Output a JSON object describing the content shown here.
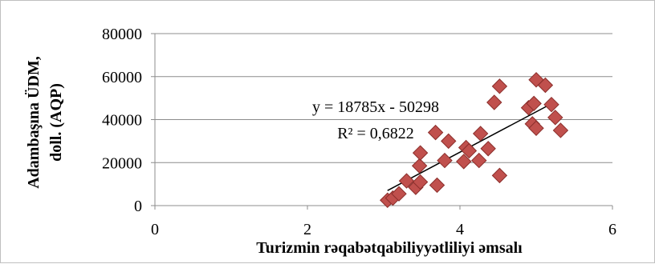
{
  "chart_data": {
    "type": "scatter",
    "xlabel": "Turizmin rəqabətqabiliyyətliliyi əmsalı",
    "ylabel_line1": "Adambaşına ÜDM,",
    "ylabel_line2": "doll. (AQP)",
    "xlim": [
      0,
      6
    ],
    "ylim": [
      0,
      80000
    ],
    "x_ticks": [
      0,
      2,
      4,
      6
    ],
    "x_tick_labels": [
      "0",
      "2",
      "4",
      "6"
    ],
    "y_ticks": [
      0,
      20000,
      40000,
      60000,
      80000
    ],
    "y_tick_labels": [
      "0",
      "20000",
      "40000",
      "60000",
      "80000"
    ],
    "grid": "horizontal",
    "marker_color": "#c0504d",
    "trendline": {
      "slope": 18785,
      "intercept": -50298,
      "x_range": [
        3.05,
        5.25
      ],
      "equation_label": "y = 18785x - 50298",
      "r2_label": "R² = 0,6822"
    },
    "points": [
      {
        "x": 3.05,
        "y": 2500
      },
      {
        "x": 3.12,
        "y": 3500
      },
      {
        "x": 3.2,
        "y": 5500
      },
      {
        "x": 3.3,
        "y": 11500
      },
      {
        "x": 3.42,
        "y": 8500
      },
      {
        "x": 3.48,
        "y": 11000
      },
      {
        "x": 3.47,
        "y": 18500
      },
      {
        "x": 3.48,
        "y": 24500
      },
      {
        "x": 3.68,
        "y": 34000
      },
      {
        "x": 3.7,
        "y": 9500
      },
      {
        "x": 3.8,
        "y": 21000
      },
      {
        "x": 3.85,
        "y": 30000
      },
      {
        "x": 4.05,
        "y": 20500
      },
      {
        "x": 4.08,
        "y": 27000
      },
      {
        "x": 4.12,
        "y": 25500
      },
      {
        "x": 4.25,
        "y": 21000
      },
      {
        "x": 4.27,
        "y": 33500
      },
      {
        "x": 4.37,
        "y": 26500
      },
      {
        "x": 4.45,
        "y": 48000
      },
      {
        "x": 4.52,
        "y": 14000
      },
      {
        "x": 4.52,
        "y": 55500
      },
      {
        "x": 4.9,
        "y": 45500
      },
      {
        "x": 4.95,
        "y": 38000
      },
      {
        "x": 4.97,
        "y": 47500
      },
      {
        "x": 5.0,
        "y": 36000
      },
      {
        "x": 5.0,
        "y": 58500
      },
      {
        "x": 5.12,
        "y": 56000
      },
      {
        "x": 5.2,
        "y": 47000
      },
      {
        "x": 5.25,
        "y": 41000
      },
      {
        "x": 5.32,
        "y": 35000
      }
    ]
  }
}
